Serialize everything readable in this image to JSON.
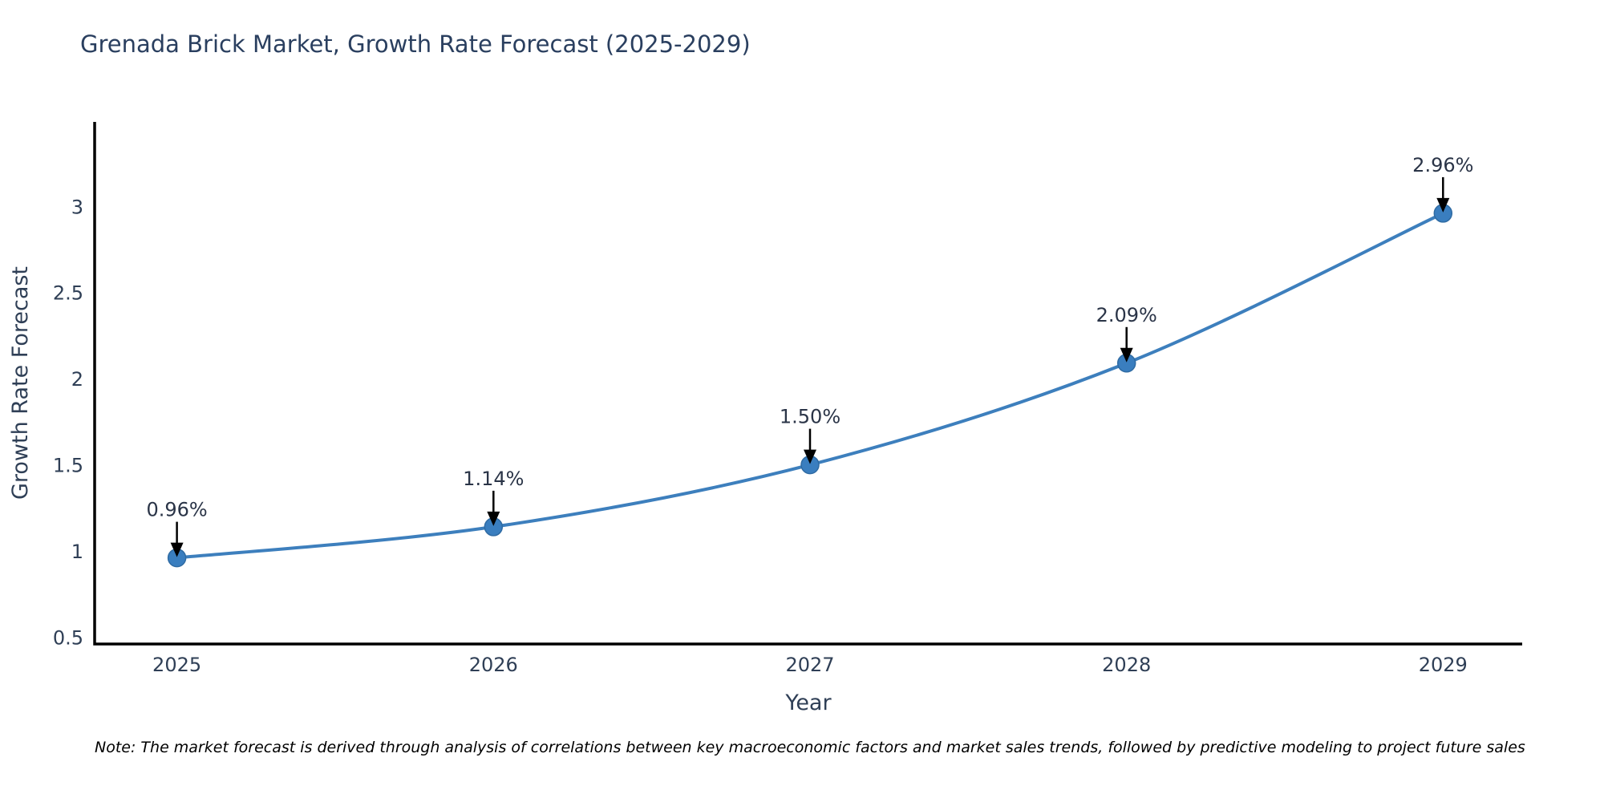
{
  "title": "Grenada Brick Market, Growth Rate Forecast (2025-2029)",
  "note": "Note: The market forecast is derived through analysis of correlations between key macroeconomic factors and market sales trends, followed by predictive modeling to project future sales",
  "colors": {
    "line": "#3d7fbd",
    "marker": "#3a7ebf",
    "marker_edge": "#2f6ba3",
    "axis": "#000000",
    "arrow": "#000000",
    "title_text": "#2a3f5f",
    "tick_text": "#2f3f56",
    "background": "#ffffff"
  },
  "chart_data": {
    "type": "line",
    "title": "Grenada Brick Market, Growth Rate Forecast (2025-2029)",
    "xlabel": "Year",
    "ylabel": "Growth Rate Forecast",
    "x": [
      2025,
      2026,
      2027,
      2028,
      2029
    ],
    "values": [
      0.96,
      1.14,
      1.5,
      2.09,
      2.96
    ],
    "point_labels": [
      "0.96%",
      "1.14%",
      "1.50%",
      "2.09%",
      "2.96%"
    ],
    "x_ticks": [
      "2025",
      "2026",
      "2027",
      "2028",
      "2029"
    ],
    "y_ticks": [
      0.5,
      1,
      1.5,
      2,
      2.5,
      3
    ],
    "xlim": [
      2024.74,
      2029.25
    ],
    "ylim": [
      0.46,
      3.49
    ],
    "grid": false,
    "legend": false,
    "line_shape": "spline",
    "marker": "circle"
  }
}
